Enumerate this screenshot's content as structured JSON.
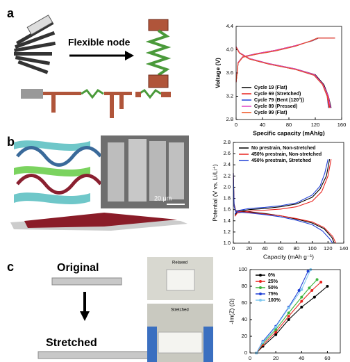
{
  "panel_labels": [
    "a",
    "b",
    "c"
  ],
  "annotations": {
    "flexible_node": "Flexible node",
    "scale_bar": "20 μm",
    "original": "Original",
    "stretched": "Stretched",
    "photo_relaxed": "Relaxed",
    "photo_stretched": "Stretched"
  },
  "chart_data": [
    {
      "type": "line",
      "xlabel": "Specific capacity (mAh/g)",
      "ylabel": "Voltage (V)",
      "xlim": [
        0,
        160
      ],
      "ylim": [
        2.8,
        4.4
      ],
      "xticks": [
        0,
        40,
        80,
        120,
        160
      ],
      "yticks": [
        2.8,
        3.2,
        3.6,
        {
          "value": 4,
          "label": "4.0"
        },
        4.4
      ],
      "legend": "lower left",
      "series": [
        {
          "name": "Cycle 19 (Flat)",
          "color": "#000000",
          "x": [
            0,
            3,
            10,
            30,
            60,
            90,
            115,
            125,
            150,
            null,
            0,
            5,
            20,
            50,
            90,
            120,
            133,
            140,
            144
          ],
          "values": [
            3.45,
            3.78,
            3.88,
            3.93,
            3.99,
            4.07,
            4.15,
            4.2,
            4.2,
            null,
            4.05,
            3.95,
            3.85,
            3.76,
            3.67,
            3.57,
            3.4,
            3.2,
            3.0
          ]
        },
        {
          "name": "Cycle 69 (Stretched)",
          "color": "#e8231e",
          "x": [
            0,
            3,
            10,
            30,
            60,
            90,
            114,
            124,
            150,
            null,
            0,
            5,
            20,
            50,
            90,
            119,
            132,
            139,
            142
          ],
          "values": [
            3.44,
            3.77,
            3.87,
            3.93,
            3.99,
            4.07,
            4.15,
            4.2,
            4.2,
            null,
            4.05,
            3.95,
            3.84,
            3.75,
            3.66,
            3.56,
            3.4,
            3.2,
            3.0
          ]
        },
        {
          "name": "Cycle 79 (Bent (120°))",
          "color": "#1f3fd6",
          "x": [
            0,
            3,
            10,
            30,
            60,
            90,
            113,
            123,
            150,
            null,
            0,
            5,
            20,
            50,
            90,
            118,
            131,
            138,
            140
          ],
          "values": [
            3.44,
            3.77,
            3.87,
            3.92,
            3.98,
            4.06,
            4.15,
            4.2,
            4.2,
            null,
            4.04,
            3.94,
            3.84,
            3.75,
            3.66,
            3.56,
            3.4,
            3.2,
            3.0
          ]
        },
        {
          "name": "Cycle 89 (Pressed)",
          "color": "#e040c0",
          "x": [
            0,
            3,
            10,
            30,
            60,
            90,
            114,
            124,
            150,
            null,
            0,
            5,
            20,
            50,
            90,
            119,
            132,
            140,
            143
          ],
          "values": [
            3.45,
            3.78,
            3.88,
            3.93,
            3.99,
            4.07,
            4.15,
            4.2,
            4.2,
            null,
            4.05,
            3.95,
            3.85,
            3.76,
            3.67,
            3.57,
            3.4,
            3.2,
            3.0
          ]
        },
        {
          "name": "Cycle 99 (Flat)",
          "color": "#f0501e",
          "x": [
            0,
            3,
            10,
            30,
            60,
            90,
            113,
            123,
            150,
            null,
            0,
            5,
            20,
            50,
            90,
            118,
            131,
            138,
            141
          ],
          "values": [
            3.44,
            3.77,
            3.87,
            3.92,
            3.98,
            4.06,
            4.15,
            4.2,
            4.2,
            null,
            4.04,
            3.94,
            3.84,
            3.75,
            3.66,
            3.56,
            3.4,
            3.2,
            3.0
          ]
        }
      ]
    },
    {
      "type": "line",
      "xlabel": "Capacity (mAh g⁻¹)",
      "ylabel": "Potential (V vs. Li/Li⁺)",
      "xlim": [
        0,
        140
      ],
      "ylim": [
        1,
        2.8
      ],
      "xticks": [
        0,
        20,
        40,
        60,
        80,
        100,
        120,
        140
      ],
      "yticks": [
        {
          "value": 1,
          "label": "1.0"
        },
        1.2,
        1.4,
        1.6,
        1.8,
        {
          "value": 2,
          "label": "2.0"
        },
        2.2,
        2.4,
        2.6,
        2.8
      ],
      "legend": "upper left",
      "series": [
        {
          "name": "No prestrain, Non-stretched",
          "color": "#000000",
          "x": [
            2,
            5,
            20,
            40,
            60,
            80,
            100,
            110,
            118,
            122,
            null,
            0,
            1,
            3,
            20,
            40,
            60,
            80,
            100,
            115,
            125,
            128
          ],
          "values": [
            1.5,
            1.56,
            1.6,
            1.62,
            1.65,
            1.7,
            1.82,
            1.97,
            2.2,
            2.5,
            null,
            2.25,
            1.7,
            1.58,
            1.56,
            1.53,
            1.49,
            1.43,
            1.36,
            1.26,
            1.1,
            1.0
          ]
        },
        {
          "name": "450% prestrain, Non-stretched",
          "color": "#e8231e",
          "x": [
            2,
            5,
            20,
            40,
            60,
            80,
            100,
            112,
            120,
            124,
            null,
            0,
            1,
            3,
            20,
            40,
            60,
            80,
            100,
            115,
            126,
            130
          ],
          "values": [
            1.48,
            1.54,
            1.57,
            1.59,
            1.61,
            1.65,
            1.75,
            1.92,
            2.2,
            2.5,
            null,
            2.25,
            1.68,
            1.57,
            1.55,
            1.52,
            1.49,
            1.44,
            1.38,
            1.28,
            1.12,
            1.0
          ]
        },
        {
          "name": "450% prestrain, Stretched",
          "color": "#1f3fd6",
          "x": [
            2,
            5,
            20,
            40,
            60,
            80,
            100,
            110,
            116,
            120,
            null,
            0,
            1,
            3,
            20,
            40,
            60,
            80,
            100,
            113,
            122,
            126
          ],
          "values": [
            1.52,
            1.58,
            1.62,
            1.64,
            1.67,
            1.72,
            1.86,
            2.02,
            2.25,
            2.5,
            null,
            2.25,
            1.66,
            1.56,
            1.54,
            1.51,
            1.47,
            1.41,
            1.33,
            1.22,
            1.08,
            1.0
          ]
        }
      ]
    },
    {
      "type": "line",
      "markers": true,
      "ylabel": "-Im(Z) (Ω)",
      "xlim": [
        0,
        70
      ],
      "ylim": [
        0,
        100
      ],
      "xticks": [
        0,
        20,
        40,
        60
      ],
      "yticks": [
        0,
        20,
        40,
        60,
        80,
        100
      ],
      "legend": "upper left",
      "series": [
        {
          "name": "0%",
          "color": "#000000",
          "x": [
            5,
            10,
            20,
            30,
            40,
            50,
            60
          ],
          "values": [
            0,
            8,
            22,
            40,
            55,
            67,
            80
          ]
        },
        {
          "name": "25%",
          "color": "#e8231e",
          "x": [
            5,
            10,
            20,
            30,
            40,
            48,
            55
          ],
          "values": [
            0,
            10,
            25,
            44,
            62,
            75,
            85
          ]
        },
        {
          "name": "50%",
          "color": "#3cb43c",
          "x": [
            5,
            10,
            20,
            30,
            40,
            46,
            52
          ],
          "values": [
            0,
            12,
            28,
            48,
            67,
            78,
            88
          ]
        },
        {
          "name": "75%",
          "color": "#1f3fd6",
          "x": [
            5,
            10,
            20,
            30,
            38,
            45
          ],
          "values": [
            0,
            14,
            32,
            55,
            75,
            98
          ]
        },
        {
          "name": "100%",
          "color": "#7fc8f0",
          "x": [
            5,
            10,
            20,
            30,
            40,
            47
          ],
          "values": [
            0,
            13,
            31,
            54,
            76,
            100
          ]
        }
      ]
    }
  ]
}
